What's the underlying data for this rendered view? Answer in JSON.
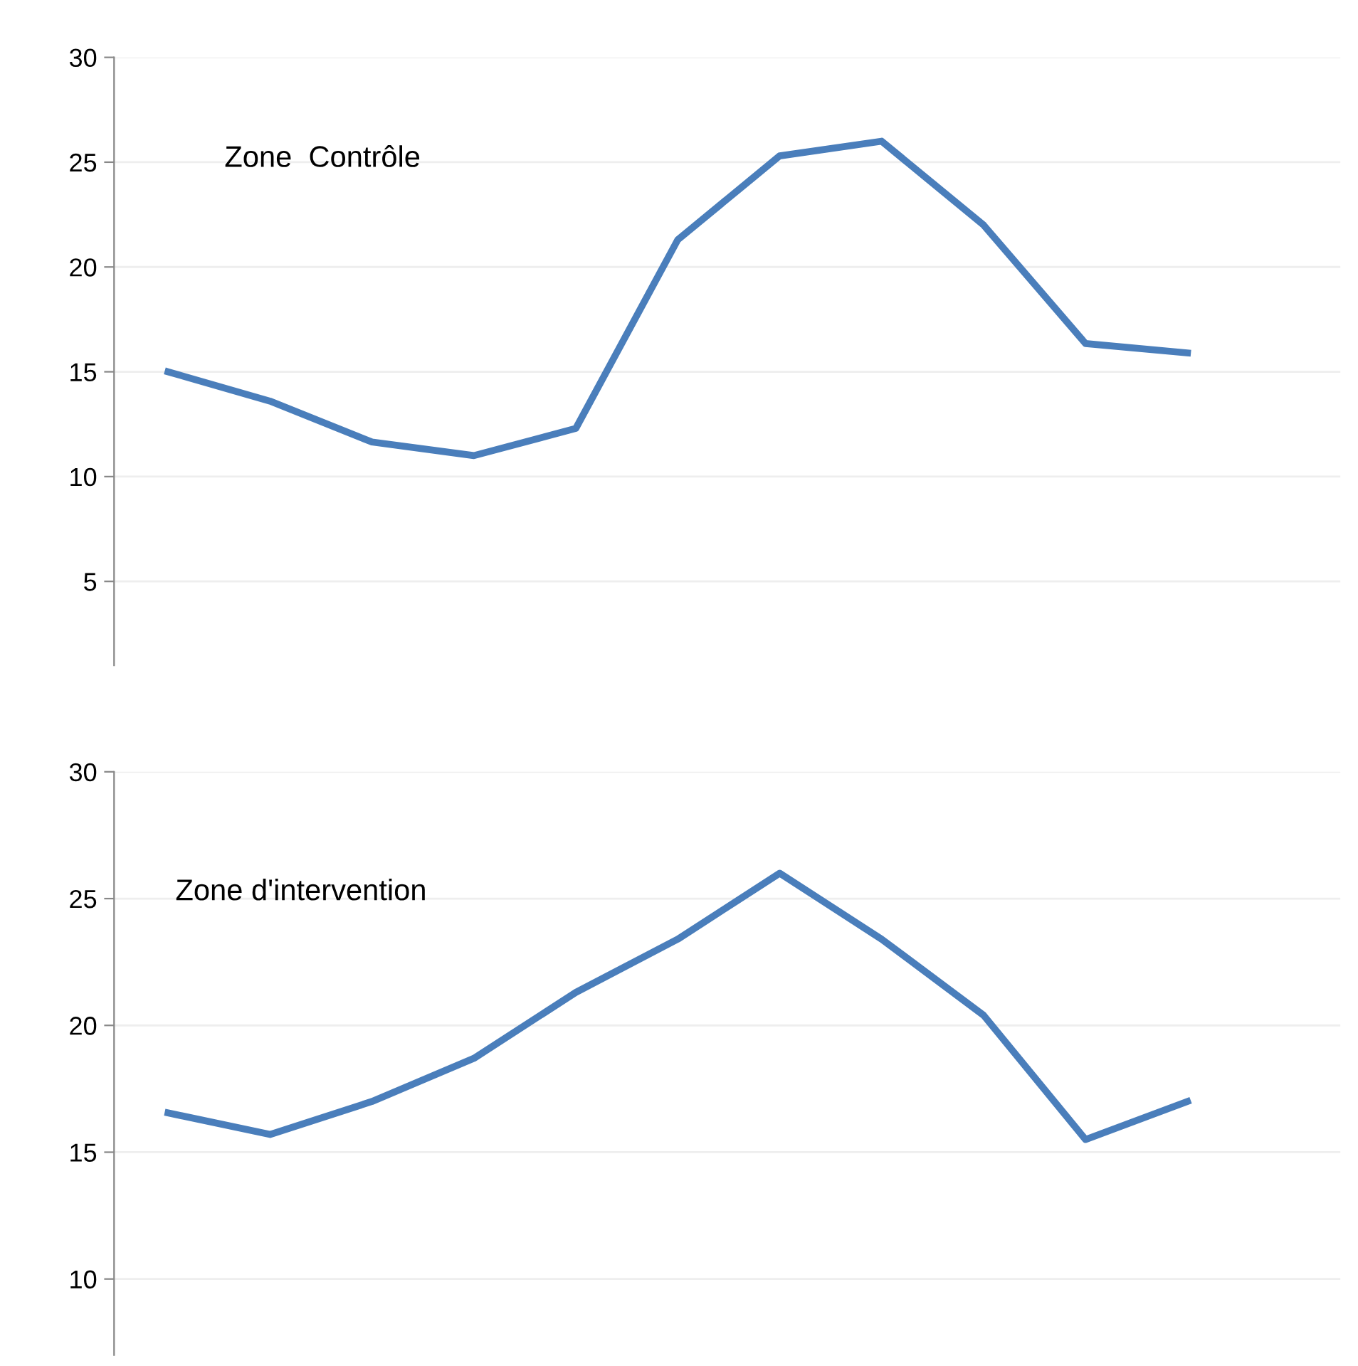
{
  "chart_data": [
    {
      "type": "line",
      "categories": [
        null,
        null,
        null,
        null,
        null,
        null,
        null,
        null,
        null,
        null,
        null
      ],
      "series": [
        {
          "color": "#4a7ebb",
          "values": [
            15,
            13.6,
            11.65,
            11,
            12.3,
            21.3,
            25.3,
            26,
            22,
            16.35,
            15.9
          ]
        }
      ],
      "ylim": [
        1,
        30
      ],
      "yticks": [
        5,
        10,
        15,
        20,
        25,
        30
      ],
      "grid": "y",
      "annotations": [
        "Zone  Contrôle"
      ]
    },
    {
      "type": "line",
      "categories": [
        null,
        null,
        null,
        null,
        null,
        null,
        null,
        null,
        null,
        null,
        null
      ],
      "series": [
        {
          "color": "#4a7ebb",
          "values": [
            16.55,
            15.7,
            17,
            18.7,
            21.3,
            23.4,
            26,
            23.4,
            20.4,
            15.5,
            17
          ]
        }
      ],
      "ylim": [
        7,
        30
      ],
      "yticks": [
        10,
        15,
        20,
        25,
        30
      ],
      "grid": "y",
      "annotations": [
        "Zone d'intervention"
      ]
    }
  ]
}
